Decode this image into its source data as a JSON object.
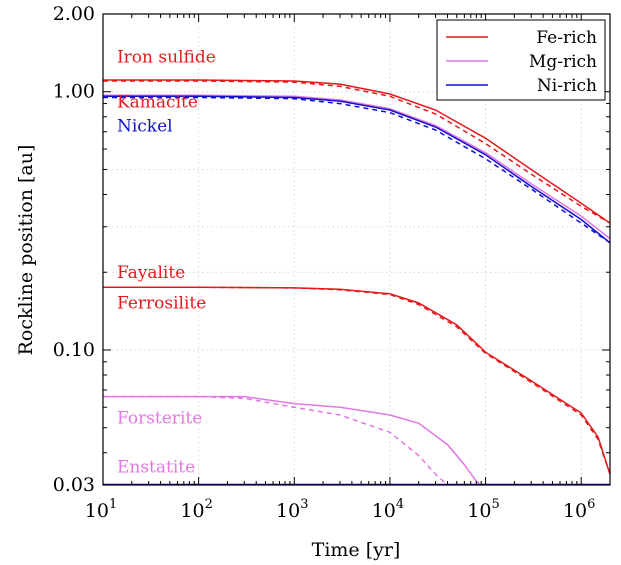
{
  "chart_data": {
    "type": "line",
    "title": "",
    "xlabel": "Time [yr]",
    "ylabel": "Rockline position [au]",
    "xscale": "log",
    "yscale": "log",
    "xlim": [
      10,
      2000000
    ],
    "ylim": [
      0.03,
      2.0
    ],
    "grid": true,
    "legend_position": "top-right",
    "x_ticks": [
      {
        "value": 10,
        "base": "10",
        "exp": "1"
      },
      {
        "value": 100,
        "base": "10",
        "exp": "2"
      },
      {
        "value": 1000,
        "base": "10",
        "exp": "3"
      },
      {
        "value": 10000,
        "base": "10",
        "exp": "4"
      },
      {
        "value": 100000,
        "base": "10",
        "exp": "5"
      },
      {
        "value": 1000000,
        "base": "10",
        "exp": "6"
      }
    ],
    "y_ticks": [
      {
        "value": 0.03,
        "label": "0.03"
      },
      {
        "value": 0.1,
        "label": "0.10"
      },
      {
        "value": 1.0,
        "label": "1.00"
      },
      {
        "value": 2.0,
        "label": "2.00"
      }
    ],
    "legend": [
      {
        "label": "Fe-rich",
        "color": "#e31a1c"
      },
      {
        "label": "Mg-rich",
        "color": "#e377e3"
      },
      {
        "label": "Ni-rich",
        "color": "#1010cc"
      }
    ],
    "colors": {
      "fe": "#e31a1c",
      "mg": "#e377e3",
      "ni": "#1010cc"
    },
    "annotations": [
      {
        "text": "Iron sulfide",
        "color": "#e31a1c",
        "x": 14,
        "y": 1.3
      },
      {
        "text": "Kamacite",
        "color": "#e31a1c",
        "x": 14,
        "y": 0.87
      },
      {
        "text": "Nickel",
        "color": "#1010cc",
        "x": 14,
        "y": 0.7
      },
      {
        "text": "Fayalite",
        "color": "#e31a1c",
        "x": 14,
        "y": 0.19
      },
      {
        "text": "Ferrosilite",
        "color": "#e31a1c",
        "x": 14,
        "y": 0.145
      },
      {
        "text": "Forsterite",
        "color": "#e377e3",
        "x": 14,
        "y": 0.052
      },
      {
        "text": "Enstatite",
        "color": "#e377e3",
        "x": 14,
        "y": 0.0335
      }
    ],
    "series": [
      {
        "group": "fe",
        "style": "solid",
        "x": [
          10,
          100,
          1000,
          3000,
          10000,
          30000,
          100000,
          300000,
          1000000,
          2000000
        ],
        "y": [
          1.11,
          1.11,
          1.1,
          1.07,
          0.98,
          0.85,
          0.66,
          0.5,
          0.37,
          0.31
        ]
      },
      {
        "group": "fe",
        "style": "dashed",
        "x": [
          10,
          100,
          1000,
          3000,
          10000,
          30000,
          100000,
          300000,
          1000000,
          2000000
        ],
        "y": [
          1.1,
          1.1,
          1.09,
          1.05,
          0.96,
          0.82,
          0.63,
          0.48,
          0.36,
          0.31
        ]
      },
      {
        "group": "mg",
        "style": "solid",
        "x": [
          10,
          100,
          1000,
          3000,
          10000,
          30000,
          100000,
          300000,
          1000000,
          2000000
        ],
        "y": [
          0.97,
          0.97,
          0.96,
          0.93,
          0.86,
          0.74,
          0.58,
          0.44,
          0.33,
          0.27
        ]
      },
      {
        "group": "ni",
        "style": "solid",
        "x": [
          10,
          100,
          1000,
          3000,
          10000,
          30000,
          100000,
          300000,
          1000000,
          2000000
        ],
        "y": [
          0.96,
          0.96,
          0.95,
          0.92,
          0.85,
          0.73,
          0.57,
          0.43,
          0.32,
          0.26
        ]
      },
      {
        "group": "ni",
        "style": "dashed",
        "x": [
          10,
          100,
          1000,
          3000,
          10000,
          30000,
          100000,
          300000,
          1000000,
          2000000
        ],
        "y": [
          0.95,
          0.95,
          0.94,
          0.9,
          0.83,
          0.71,
          0.55,
          0.42,
          0.31,
          0.26
        ]
      },
      {
        "group": "fe",
        "style": "solid",
        "x": [
          10,
          100,
          1000,
          3000,
          10000,
          20000,
          50000,
          100000,
          300000,
          1000000,
          1500000,
          2000000
        ],
        "y": [
          0.175,
          0.175,
          0.174,
          0.172,
          0.165,
          0.152,
          0.125,
          0.098,
          0.076,
          0.057,
          0.046,
          0.033
        ]
      },
      {
        "group": "fe",
        "style": "dashed",
        "x": [
          10,
          100,
          1000,
          3000,
          10000,
          20000,
          50000,
          100000,
          300000,
          1000000,
          1500000,
          2000000
        ],
        "y": [
          0.175,
          0.175,
          0.174,
          0.171,
          0.164,
          0.15,
          0.123,
          0.097,
          0.075,
          0.056,
          0.045,
          0.033
        ]
      },
      {
        "group": "mg",
        "style": "solid",
        "x": [
          10,
          100,
          300,
          1000,
          3000,
          10000,
          20000,
          40000,
          60000,
          80000,
          90000
        ],
        "y": [
          0.066,
          0.066,
          0.066,
          0.062,
          0.06,
          0.056,
          0.052,
          0.043,
          0.036,
          0.031,
          0.03
        ]
      },
      {
        "group": "mg",
        "style": "dashed",
        "x": [
          10,
          100,
          300,
          1000,
          3000,
          10000,
          20000,
          30000,
          40000
        ],
        "y": [
          0.066,
          0.066,
          0.065,
          0.06,
          0.056,
          0.048,
          0.039,
          0.033,
          0.03
        ]
      },
      {
        "group": "mg",
        "style": "solid",
        "x": [
          10,
          2000000
        ],
        "y": [
          0.0302,
          0.0302
        ]
      },
      {
        "group": "ni",
        "style": "solid",
        "x": [
          10,
          2000000
        ],
        "y": [
          0.0301,
          0.0301
        ]
      }
    ]
  }
}
